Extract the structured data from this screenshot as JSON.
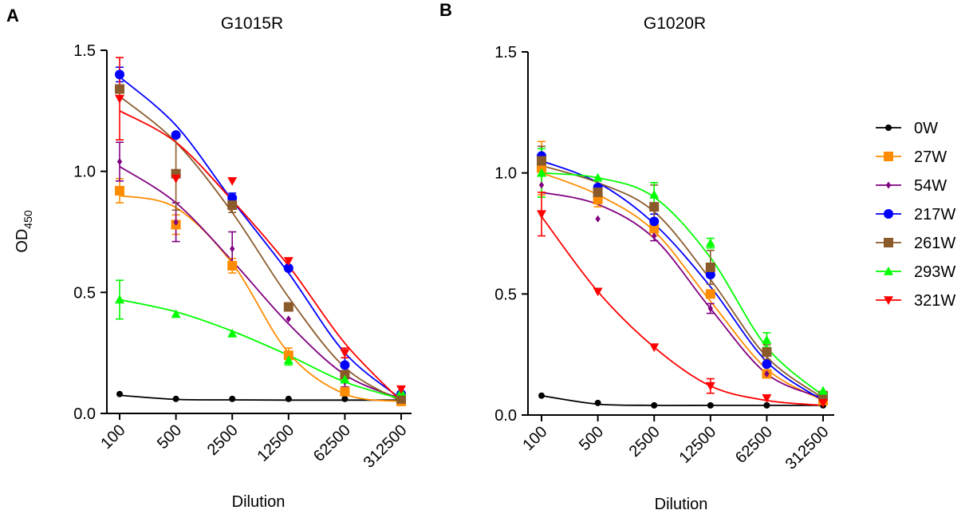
{
  "chart_data": [
    {
      "type": "line",
      "panel_label": "A",
      "title": "G1015R",
      "xlabel": "Dilution",
      "ylabel": "OD",
      "ylabel_subscript": "450",
      "categories": [
        "100",
        "500",
        "2500",
        "12500",
        "62500",
        "312500"
      ],
      "ylim": [
        0,
        1.5
      ],
      "yticks": [
        "0.0",
        "0.5",
        "1.0",
        "1.5"
      ],
      "grid": false,
      "series": [
        {
          "name": "0W",
          "color": "#000000",
          "marker": "circle",
          "values": [
            0.08,
            0.06,
            0.06,
            0.06,
            0.06,
            0.05
          ],
          "errors": [
            0,
            0,
            0,
            0,
            0,
            0
          ]
        },
        {
          "name": "27W",
          "color": "#ff8c00",
          "marker": "square",
          "values": [
            0.92,
            0.78,
            0.61,
            0.24,
            0.09,
            0.05
          ],
          "errors": [
            0.05,
            0.04,
            0.03,
            0.03,
            0.01,
            0.01
          ]
        },
        {
          "name": "54W",
          "color": "#800080",
          "marker": "diamond",
          "values": [
            1.04,
            0.79,
            0.68,
            0.39,
            0.13,
            0.06
          ],
          "errors": [
            0.08,
            0.08,
            0.07,
            0,
            0.02,
            0
          ]
        },
        {
          "name": "217W",
          "color": "#0000ff",
          "marker": "circle",
          "values": [
            1.4,
            1.15,
            0.89,
            0.6,
            0.2,
            0.08
          ],
          "errors": [
            0.03,
            0,
            0.02,
            0,
            0.03,
            0.01
          ]
        },
        {
          "name": "261W",
          "color": "#8b5a2b",
          "marker": "square",
          "values": [
            1.34,
            0.99,
            0.86,
            0.44,
            0.16,
            0.06
          ],
          "errors": [
            0,
            0.15,
            0.03,
            0,
            0.03,
            0
          ]
        },
        {
          "name": "293W",
          "color": "#00ff00",
          "marker": "triangle",
          "values": [
            0.47,
            0.41,
            0.33,
            0.22,
            0.14,
            0.09
          ],
          "errors": [
            0.08,
            0,
            0,
            0.02,
            0,
            0
          ]
        },
        {
          "name": "321W",
          "color": "#ff0000",
          "marker": "tri-down",
          "values": [
            1.3,
            0.97,
            0.96,
            0.63,
            0.25,
            0.1
          ],
          "errors": [
            0.17,
            0,
            0,
            0,
            0.02,
            0.01
          ]
        }
      ],
      "fits": [
        {
          "name": "0W",
          "values": [
            0.075,
            0.058,
            0.056,
            0.055,
            0.055,
            0.055
          ]
        },
        {
          "name": "27W",
          "values": [
            0.9,
            0.85,
            0.62,
            0.25,
            0.08,
            0.05
          ]
        },
        {
          "name": "54W",
          "values": [
            1.02,
            0.87,
            0.63,
            0.37,
            0.16,
            0.06
          ]
        },
        {
          "name": "217W",
          "values": [
            1.39,
            1.19,
            0.88,
            0.58,
            0.25,
            0.06
          ]
        },
        {
          "name": "261W",
          "values": [
            1.31,
            1.12,
            0.83,
            0.48,
            0.19,
            0.05
          ]
        },
        {
          "name": "293W",
          "values": [
            0.47,
            0.42,
            0.34,
            0.24,
            0.13,
            0.06
          ]
        },
        {
          "name": "321W",
          "values": [
            1.25,
            1.12,
            0.88,
            0.61,
            0.29,
            0.05
          ]
        }
      ]
    },
    {
      "type": "line",
      "panel_label": "B",
      "title": "G1020R",
      "xlabel": "Dilution",
      "ylabel": "",
      "categories": [
        "100",
        "500",
        "2500",
        "12500",
        "62500",
        "312500"
      ],
      "ylim": [
        0,
        1.5
      ],
      "yticks": [
        "0.0",
        "0.5",
        "1.0",
        "1.5"
      ],
      "grid": false,
      "legend": "right",
      "series": [
        {
          "name": "0W",
          "color": "#000000",
          "marker": "circle",
          "values": [
            0.08,
            0.05,
            0.04,
            0.04,
            0.04,
            0.04
          ],
          "errors": [
            0,
            0,
            0,
            0,
            0,
            0
          ]
        },
        {
          "name": "27W",
          "color": "#ff8c00",
          "marker": "square",
          "values": [
            1.02,
            0.89,
            0.77,
            0.5,
            0.17,
            0.06
          ],
          "errors": [
            0.11,
            0.03,
            0.03,
            0,
            0.01,
            0
          ]
        },
        {
          "name": "54W",
          "color": "#800080",
          "marker": "diamond",
          "values": [
            0.95,
            0.81,
            0.74,
            0.44,
            0.17,
            0.07
          ],
          "errors": [
            0,
            0,
            0.02,
            0.02,
            0.01,
            0
          ]
        },
        {
          "name": "217W",
          "color": "#0000ff",
          "marker": "circle",
          "values": [
            1.07,
            0.94,
            0.8,
            0.58,
            0.21,
            0.08
          ],
          "errors": [
            0.04,
            0.01,
            0.03,
            0.01,
            0,
            0
          ]
        },
        {
          "name": "261W",
          "color": "#8b5a2b",
          "marker": "square",
          "values": [
            1.05,
            0.92,
            0.86,
            0.61,
            0.26,
            0.08
          ],
          "errors": [
            0.06,
            0.02,
            0.09,
            0.07,
            0.03,
            0
          ]
        },
        {
          "name": "293W",
          "color": "#00ff00",
          "marker": "triangle",
          "values": [
            1.0,
            0.98,
            0.91,
            0.71,
            0.31,
            0.1
          ],
          "errors": [
            0.1,
            0,
            0.05,
            0.02,
            0.03,
            0
          ]
        },
        {
          "name": "321W",
          "color": "#ff0000",
          "marker": "tri-down",
          "values": [
            0.83,
            0.51,
            0.28,
            0.12,
            0.07,
            0.05
          ],
          "errors": [
            0.09,
            0,
            0,
            0.03,
            0,
            0
          ]
        }
      ],
      "fits": [
        {
          "name": "0W",
          "values": [
            0.08,
            0.045,
            0.04,
            0.04,
            0.04,
            0.04
          ]
        },
        {
          "name": "27W",
          "values": [
            1.0,
            0.91,
            0.76,
            0.47,
            0.19,
            0.06
          ]
        },
        {
          "name": "54W",
          "values": [
            0.92,
            0.87,
            0.73,
            0.44,
            0.17,
            0.07
          ]
        },
        {
          "name": "217W",
          "values": [
            1.05,
            0.96,
            0.79,
            0.53,
            0.22,
            0.06
          ]
        },
        {
          "name": "261W",
          "values": [
            1.03,
            0.96,
            0.84,
            0.56,
            0.24,
            0.07
          ]
        },
        {
          "name": "293W",
          "values": [
            1.0,
            0.98,
            0.9,
            0.65,
            0.28,
            0.08
          ]
        },
        {
          "name": "321W",
          "values": [
            0.82,
            0.51,
            0.28,
            0.12,
            0.06,
            0.04
          ]
        }
      ]
    }
  ]
}
